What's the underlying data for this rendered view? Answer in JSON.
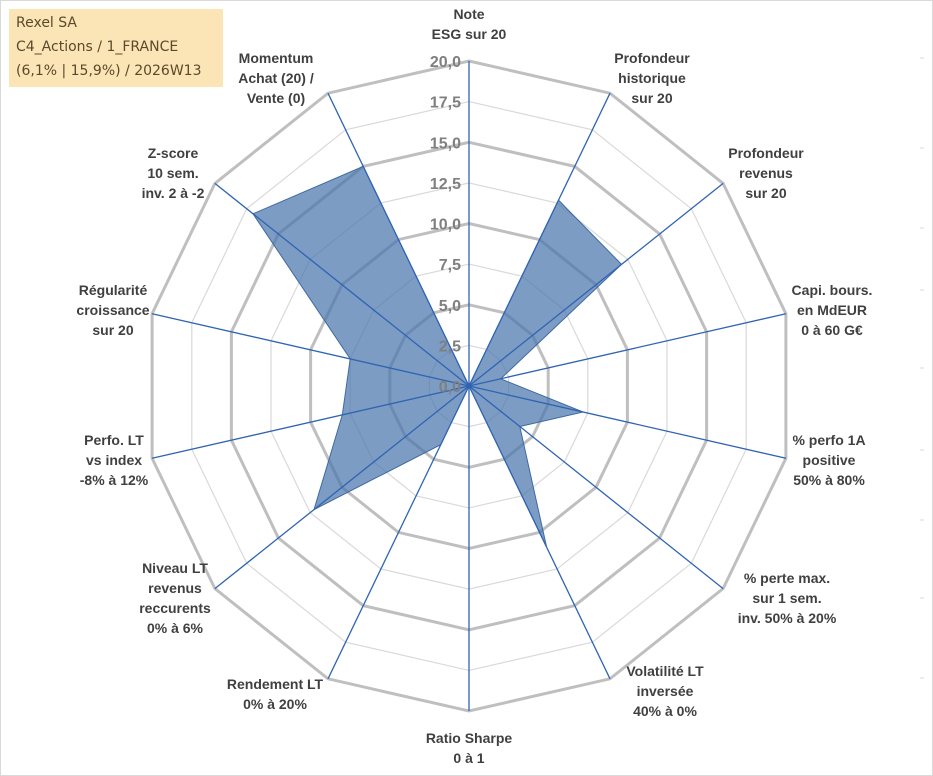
{
  "info": {
    "line1": "Rexel SA",
    "line2": "C4_Actions / 1_FRANCE",
    "line3": "(6,1% | 15,9%) / 2026W13"
  },
  "chart_data": {
    "type": "radar",
    "rmin": 0,
    "rmax": 20,
    "ticks": [
      "0,0",
      "2,5",
      "5,0",
      "7,5",
      "10,0",
      "12,5",
      "15,0",
      "17,5",
      "20,0"
    ],
    "axes": [
      {
        "label": [
          "Note",
          "ESG sur 20"
        ],
        "value": 0
      },
      {
        "label": [
          "Profondeur",
          "historique",
          "sur 20"
        ],
        "value": 12.7
      },
      {
        "label": [
          "Profondeur",
          "revenus",
          "sur 20"
        ],
        "value": 12.0
      },
      {
        "label": [
          "Capi. bours.",
          "en MdEUR",
          "0 à 60 G€"
        ],
        "value": 2.0
      },
      {
        "label": [
          "% perfo 1A",
          "positive",
          "50% à 80%"
        ],
        "value": 7.2
      },
      {
        "label": [
          "% perte max.",
          "sur 1 sem.",
          "inv. 50% à 20%"
        ],
        "value": 4.0
      },
      {
        "label": [
          "Volatilité LT",
          "inversée",
          "40% à 0%"
        ],
        "value": 11.0
      },
      {
        "label": [
          "Ratio Sharpe",
          "0 à 1"
        ],
        "value": 0
      },
      {
        "label": [
          "Rendement LT",
          "0% à 20%"
        ],
        "value": 4.0
      },
      {
        "label": [
          "Niveau LT",
          "revenus",
          "reccurents",
          "0% à 6%"
        ],
        "value": 12.2
      },
      {
        "label": [
          "Perfo. LT",
          "vs index",
          "-8% à 12%"
        ],
        "value": 8.0
      },
      {
        "label": [
          "Régularité",
          "croissance",
          "sur 20"
        ],
        "value": 7.5
      },
      {
        "label": [
          "Z-score",
          "10 sem.",
          "inv. 2 à -2"
        ],
        "value": 17.0
      },
      {
        "label": [
          "Momentum",
          "Achat (20) /",
          "Vente (0)"
        ],
        "value": 15.0
      }
    ]
  }
}
